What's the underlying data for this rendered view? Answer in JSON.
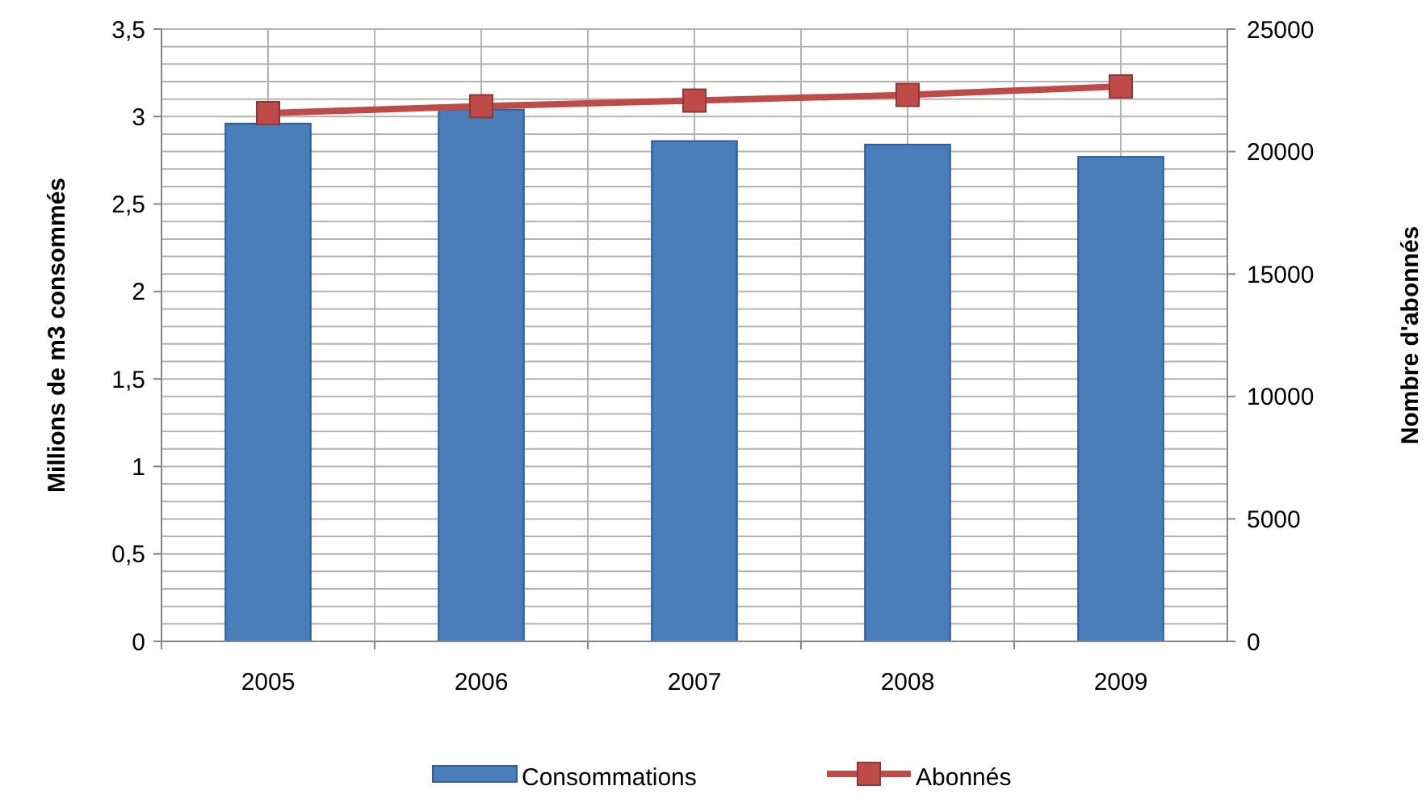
{
  "chart_data": {
    "type": "bar",
    "categories": [
      "2005",
      "2006",
      "2007",
      "2008",
      "2009"
    ],
    "series": [
      {
        "name": "Consommations",
        "color": "#4a7ebb",
        "values": [
          2.96,
          3.04,
          2.86,
          2.84,
          2.77
        ]
      },
      {
        "name": "Abonnés",
        "type": "line",
        "axis": "y2",
        "color": "#be4b48",
        "marker": "square",
        "values": [
          21570,
          21850,
          22080,
          22310,
          22660
        ]
      }
    ],
    "ylabel": "Millions de m3 consommés",
    "y2label": "Nombre d'abonnés",
    "ylim": [
      0,
      3.5
    ],
    "yticks": [
      0,
      {
        "value": 0.1,
        "label": null
      },
      {
        "value": 0.2,
        "label": null
      },
      {
        "value": 0.3,
        "label": null
      },
      {
        "value": 0.4,
        "label": null
      },
      {
        "value": 0.5,
        "label": "0,5"
      },
      {
        "value": 0.6,
        "label": null
      },
      {
        "value": 0.7,
        "label": null
      },
      {
        "value": 0.8,
        "label": null
      },
      {
        "value": 0.9,
        "label": null
      },
      1,
      {
        "value": 1.1,
        "label": null
      },
      {
        "value": 1.2,
        "label": null
      },
      {
        "value": 1.3,
        "label": null
      },
      {
        "value": 1.4,
        "label": null
      },
      {
        "value": 1.5,
        "label": "1,5"
      },
      {
        "value": 1.6,
        "label": null
      },
      {
        "value": 1.7,
        "label": null
      },
      {
        "value": 1.8,
        "label": null
      },
      {
        "value": 1.9,
        "label": null
      },
      2,
      {
        "value": 2.1,
        "label": null
      },
      {
        "value": 2.2,
        "label": null
      },
      {
        "value": 2.3,
        "label": null
      },
      {
        "value": 2.4,
        "label": null
      },
      {
        "value": 2.5,
        "label": "2,5"
      },
      {
        "value": 2.6,
        "label": null
      },
      {
        "value": 2.7,
        "label": null
      },
      {
        "value": 2.8,
        "label": null
      },
      {
        "value": 2.9,
        "label": null
      },
      3,
      {
        "value": 3.1,
        "label": null
      },
      {
        "value": 3.2,
        "label": null
      },
      {
        "value": 3.3,
        "label": null
      },
      {
        "value": 3.4,
        "label": null
      },
      {
        "value": 3.5,
        "label": "3,5"
      }
    ],
    "y2lim": [
      0,
      25000
    ],
    "y2ticks": [
      0,
      5000,
      10000,
      15000,
      20000,
      25000
    ],
    "grid": true,
    "legend": "bottom"
  }
}
